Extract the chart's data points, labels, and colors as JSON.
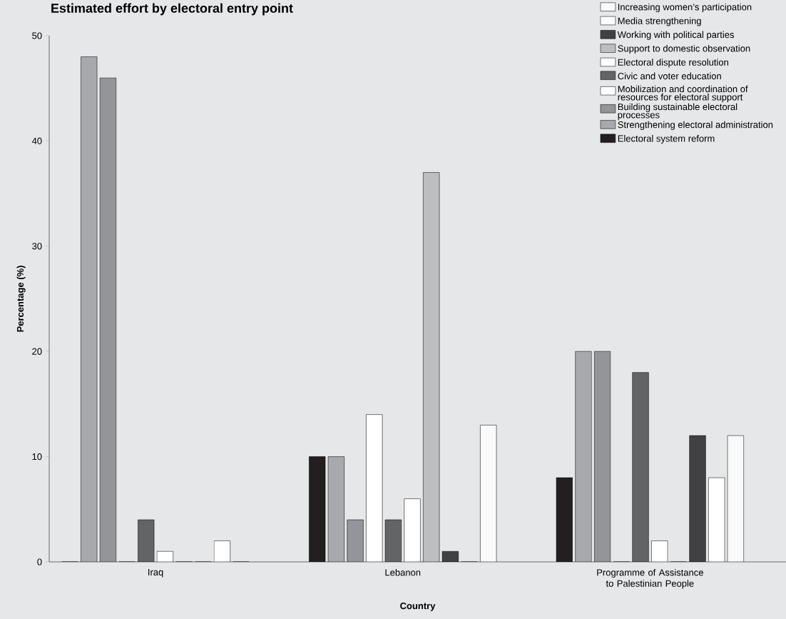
{
  "chart_data": {
    "type": "bar",
    "title": "Estimated effort by electoral entry point",
    "xlabel": "Country",
    "ylabel": "Percentage (%)",
    "categories": [
      "Iraq",
      "Lebanon",
      "Programme of Assistance to Palestinian People"
    ],
    "series": [
      {
        "name": "Electoral system reform",
        "color": "#231f20",
        "values": [
          0,
          10,
          8
        ]
      },
      {
        "name": "Strengthening electoral administration",
        "color": "#a7a9ac",
        "values": [
          48,
          10,
          20
        ]
      },
      {
        "name": "Building sustainable electoral processes",
        "color": "#939598",
        "values": [
          46,
          4,
          20
        ]
      },
      {
        "name": "Mobilization and coordination of resources for electoral support",
        "color": "#ffffff",
        "values": [
          0,
          14,
          0
        ]
      },
      {
        "name": "Civic and voter education",
        "color": "#636466",
        "values": [
          4,
          4,
          18
        ]
      },
      {
        "name": "Electoral dispute resolution",
        "color": "#ffffff",
        "values": [
          1,
          6,
          2
        ]
      },
      {
        "name": "Support to domestic observation",
        "color": "#bcbec0",
        "values": [
          0,
          37,
          0
        ]
      },
      {
        "name": "Working with political parties",
        "color": "#414042",
        "values": [
          0,
          1,
          12
        ]
      },
      {
        "name": "Media strengthening",
        "color": "#ffffff",
        "values": [
          2,
          0,
          8
        ]
      },
      {
        "name": "Increasing women’s participation",
        "color": "#fafafa",
        "values": [
          0,
          13,
          12
        ]
      }
    ],
    "ylim": [
      0,
      50
    ],
    "yticks": [
      0,
      10,
      20,
      30,
      40,
      50
    ],
    "legend": "top right",
    "grid": false
  }
}
